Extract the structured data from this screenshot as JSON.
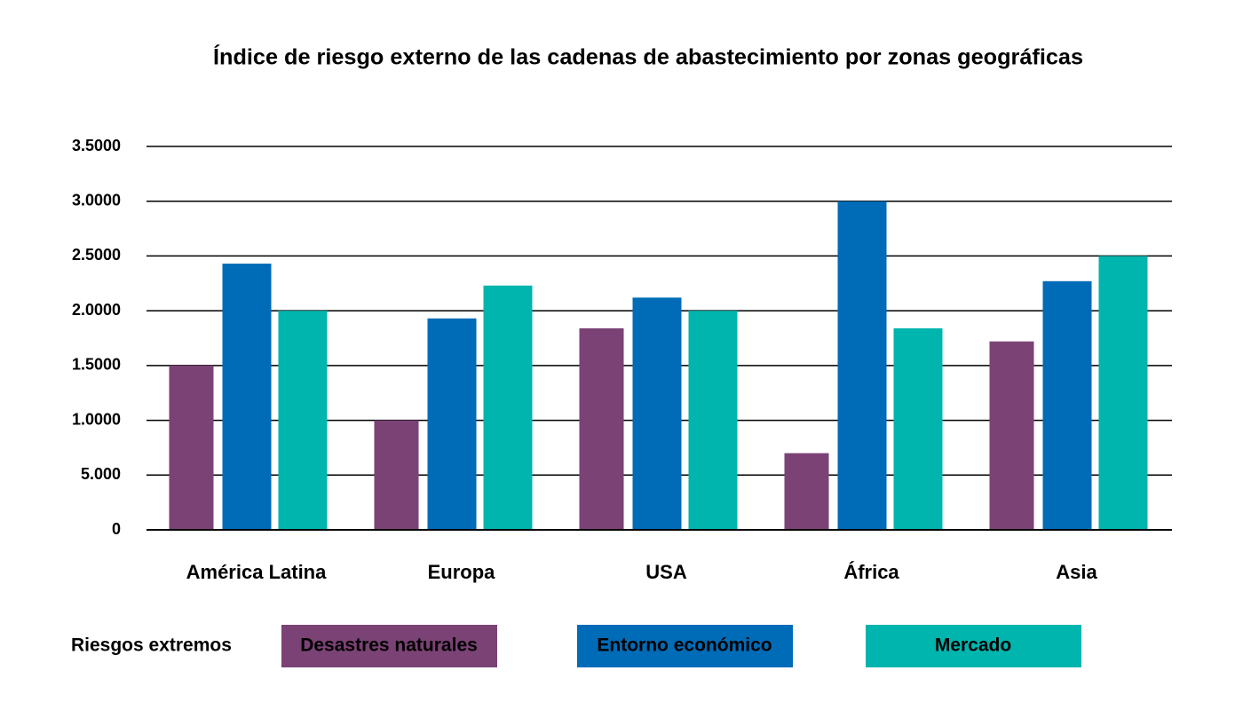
{
  "chart_data": {
    "type": "bar",
    "title": "Índice de riesgo externo de las cadenas de abastecimiento por zonas geográficas",
    "categories": [
      "América Latina",
      "Europa",
      "USA",
      "África",
      "Asia"
    ],
    "series": [
      {
        "name": "Desastres naturales",
        "color": "#7b4275",
        "values": [
          15000,
          10000,
          18400,
          7000,
          17200
        ]
      },
      {
        "name": "Entorno económico",
        "color": "#006bb6",
        "values": [
          24300,
          19300,
          21200,
          30000,
          22700
        ]
      },
      {
        "name": "Mercado",
        "color": "#00b5ae",
        "values": [
          20000,
          22300,
          20000,
          18400,
          25000
        ]
      }
    ],
    "legend_title": "Riesgos extremos",
    "legend": "bottom",
    "ylim": [
      0,
      35000
    ],
    "yticks": [
      0,
      {
        "value": 5000,
        "label": "5.000"
      },
      {
        "value": 10000,
        "label": "1.0000"
      },
      {
        "value": 15000,
        "label": "1.5000"
      },
      {
        "value": 20000,
        "label": "2.0000"
      },
      {
        "value": 25000,
        "label": "2.5000"
      },
      {
        "value": 30000,
        "label": "3.0000"
      },
      {
        "value": 35000,
        "label": "3.5000"
      }
    ],
    "grid": true
  }
}
